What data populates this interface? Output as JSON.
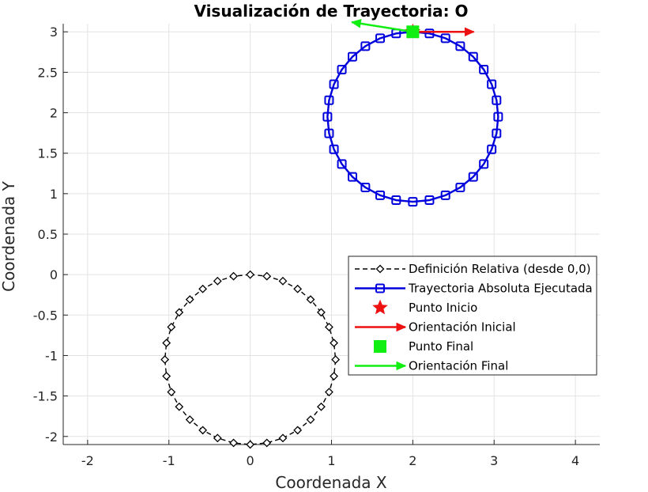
{
  "chart_data": {
    "type": "line",
    "title": "Visualización de Trayectoria: O",
    "xlabel": "Coordenada X",
    "ylabel": "Coordenada Y",
    "xlim": [
      -2.3,
      4.3
    ],
    "ylim": [
      -2.1,
      3.1
    ],
    "xticks": [
      -2,
      -1,
      0,
      1,
      2,
      3,
      4
    ],
    "xtick_labels": [
      "-2",
      "-1",
      "0",
      "1",
      "2",
      "3",
      "4"
    ],
    "yticks": [
      -2,
      -1.5,
      -1,
      -0.5,
      0,
      0.5,
      1,
      1.5,
      2,
      2.5,
      3
    ],
    "ytick_labels": [
      "-2",
      "-1.5",
      "-1",
      "-0.5",
      "0",
      "0.5",
      "1",
      "1.5",
      "2",
      "2.5",
      "3"
    ],
    "grid": true,
    "legend_position": "right",
    "series": [
      {
        "name": "Definición Relativa (desde 0,0)",
        "color": "#000000",
        "line": "dashed",
        "marker": "diamond-open",
        "center": [
          0,
          -1.05
        ],
        "radius": 1.05,
        "points": 32
      },
      {
        "name": "Trayectoria Absoluta Ejecutada",
        "color": "#0000dd",
        "line": "solid",
        "marker": "square-open",
        "center": [
          2,
          1.95
        ],
        "radius": 1.05,
        "points": 32
      }
    ],
    "markers": [
      {
        "name": "Punto Inicio",
        "symbol": "star",
        "color": "#ee1111",
        "x": 2,
        "y": 3.0
      },
      {
        "name": "Punto Final",
        "symbol": "square",
        "color": "#11ee11",
        "x": 2,
        "y": 3.0
      }
    ],
    "arrows": [
      {
        "name": "Orientación Inicial",
        "color": "#ee1111",
        "from": [
          2,
          3.0
        ],
        "to": [
          2.75,
          3.0
        ]
      },
      {
        "name": "Orientación Final",
        "color": "#11ee11",
        "from": [
          2,
          3.0
        ],
        "to": [
          1.25,
          3.12
        ]
      }
    ]
  }
}
